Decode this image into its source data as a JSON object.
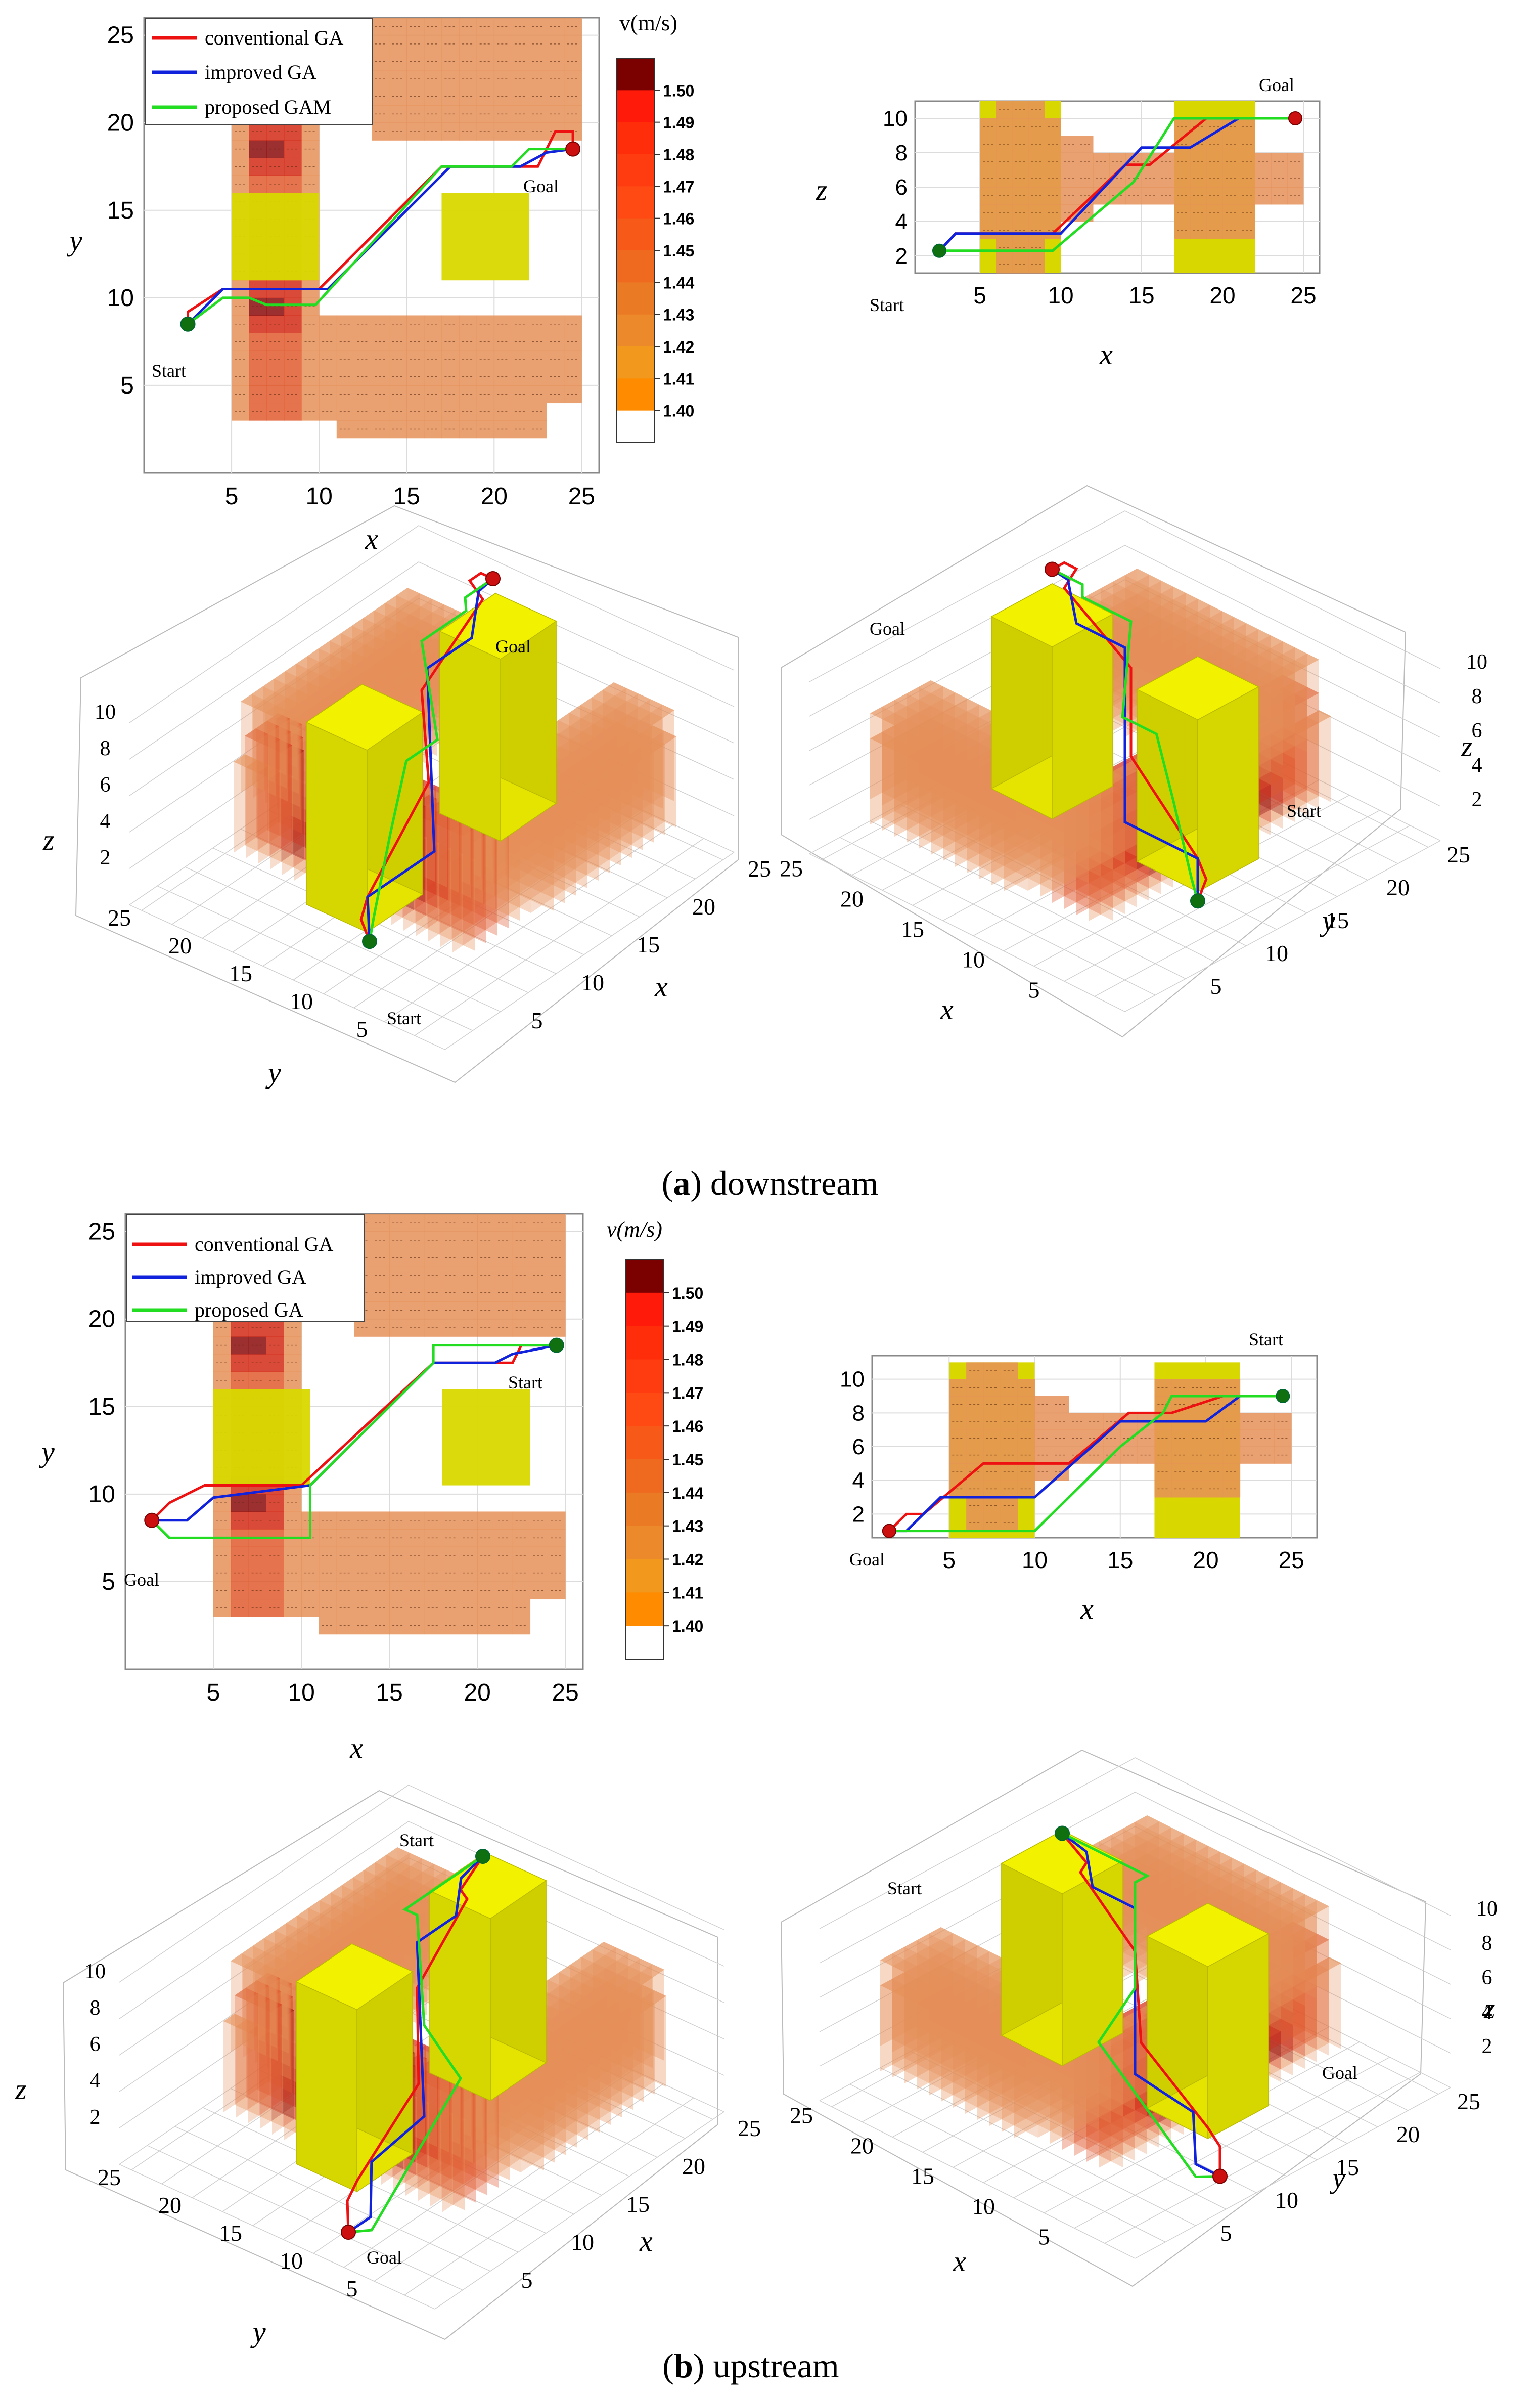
{
  "chart_data": {
    "type": "heatmap",
    "legend": {
      "conventional": "conventional GA",
      "improved": "improved GA",
      "proposed_a": "proposed GAM",
      "proposed_b": "proposed GA"
    },
    "colorbar": {
      "title_a": "v(m/s)",
      "title_b": "v(m/s)",
      "ticks": [
        "1.50",
        "1.49",
        "1.48",
        "1.47",
        "1.46",
        "1.45",
        "1.44",
        "1.43",
        "1.42",
        "1.41",
        "1.40"
      ],
      "colors": [
        "#7b0000",
        "#ff1a0a",
        "#ff2d0a",
        "#ff3c10",
        "#ff4a14",
        "#f75a18",
        "#ef6a1e",
        "#eb7a25",
        "#ec8a2b",
        "#f1981d",
        "#ff8c00",
        "#ffffff"
      ]
    },
    "axes": {
      "x_label": "x",
      "y_label": "y",
      "z_label": "z",
      "xy_ticks": [
        "5",
        "10",
        "15",
        "20",
        "25"
      ],
      "z_ticks": [
        "2",
        "4",
        "6",
        "8",
        "10"
      ]
    },
    "labels": {
      "start": "Start",
      "goal": "Goal"
    },
    "captions": {
      "a_letter": "a",
      "a_text": " downstream",
      "b_letter": "b",
      "b_text": " upstream"
    },
    "series_downstream_xy": {
      "conventional": [
        [
          2.5,
          8.5
        ],
        [
          2.5,
          9.2
        ],
        [
          4.5,
          10.5
        ],
        [
          10,
          10.5
        ],
        [
          17,
          17.5
        ],
        [
          22.5,
          17.5
        ],
        [
          23.5,
          19.5
        ],
        [
          24.5,
          19.5
        ],
        [
          24.5,
          18.5
        ]
      ],
      "improved": [
        [
          2.5,
          8.5
        ],
        [
          4.5,
          10.5
        ],
        [
          10.5,
          10.5
        ],
        [
          17.5,
          17.5
        ],
        [
          21.5,
          17.5
        ],
        [
          23,
          18.3
        ],
        [
          24.5,
          18.5
        ]
      ],
      "proposed": [
        [
          2.5,
          8.5
        ],
        [
          4.5,
          10
        ],
        [
          6,
          10
        ],
        [
          7,
          9.6
        ],
        [
          9.5,
          9.6
        ],
        [
          9.8,
          9.6
        ],
        [
          17,
          17.5
        ],
        [
          21,
          17.5
        ],
        [
          22,
          18.5
        ],
        [
          24.5,
          18.5
        ]
      ]
    },
    "series_upstream_xy": {
      "conventional": [
        [
          1.5,
          8.5
        ],
        [
          2.5,
          9.5
        ],
        [
          4.5,
          10.5
        ],
        [
          10,
          10.5
        ],
        [
          17.5,
          17.5
        ],
        [
          22,
          17.5
        ],
        [
          22.5,
          18.5
        ],
        [
          24.5,
          18.5
        ]
      ],
      "improved": [
        [
          1.5,
          8.5
        ],
        [
          3.5,
          8.5
        ],
        [
          5,
          9.8
        ],
        [
          10.5,
          10.5
        ],
        [
          17.5,
          17.5
        ],
        [
          21,
          17.5
        ],
        [
          22,
          18
        ],
        [
          24.5,
          18.5
        ]
      ],
      "proposed": [
        [
          1.5,
          8.5
        ],
        [
          2.5,
          7.5
        ],
        [
          10.5,
          7.5
        ],
        [
          10.5,
          10.5
        ],
        [
          17.5,
          17.5
        ],
        [
          17.5,
          18.5
        ],
        [
          24.5,
          18.5
        ]
      ]
    },
    "series_downstream_xz": {
      "conventional": [
        [
          2.5,
          2.3
        ],
        [
          3.5,
          3.3
        ],
        [
          9.5,
          3.3
        ],
        [
          14,
          7.3
        ],
        [
          15.5,
          7.3
        ],
        [
          19,
          10
        ],
        [
          24.5,
          10
        ]
      ],
      "improved": [
        [
          2.5,
          2.3
        ],
        [
          3.5,
          3.3
        ],
        [
          10,
          3.3
        ],
        [
          15,
          8.3
        ],
        [
          18,
          8.3
        ],
        [
          21,
          10
        ],
        [
          24.5,
          10
        ]
      ],
      "proposed": [
        [
          2.5,
          2.3
        ],
        [
          9.5,
          2.3
        ],
        [
          14.5,
          6.3
        ],
        [
          17,
          10
        ],
        [
          24.5,
          10
        ]
      ]
    },
    "series_upstream_xz": {
      "conventional": [
        [
          1.5,
          1
        ],
        [
          2.5,
          2
        ],
        [
          3.5,
          2
        ],
        [
          7,
          5
        ],
        [
          12,
          5
        ],
        [
          15.5,
          8
        ],
        [
          18,
          8
        ],
        [
          21,
          9
        ],
        [
          24.5,
          9
        ]
      ],
      "improved": [
        [
          1.5,
          1
        ],
        [
          2.5,
          1
        ],
        [
          4.5,
          3
        ],
        [
          10,
          3
        ],
        [
          15,
          7.5
        ],
        [
          20,
          7.5
        ],
        [
          22,
          9
        ],
        [
          24.5,
          9
        ]
      ],
      "proposed": [
        [
          1.5,
          1
        ],
        [
          10,
          1
        ],
        [
          15,
          6
        ],
        [
          17.5,
          8
        ],
        [
          18,
          9
        ],
        [
          24.5,
          9
        ]
      ]
    }
  }
}
